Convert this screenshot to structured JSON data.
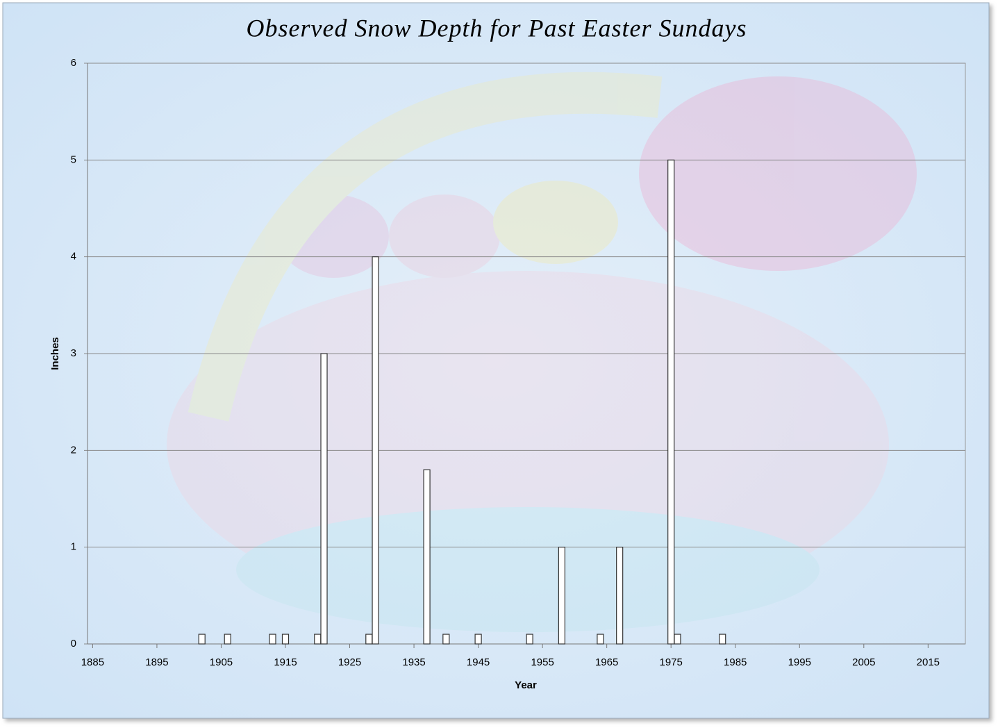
{
  "chart_data": {
    "type": "bar",
    "title": "Observed Snow Depth for Past Easter Sundays",
    "x_label": "Year",
    "y_label": "Inches",
    "x": [
      1902,
      1906,
      1913,
      1915,
      1920,
      1921,
      1928,
      1929,
      1937,
      1940,
      1945,
      1953,
      1958,
      1964,
      1967,
      1975,
      1976,
      1983
    ],
    "values": [
      0.1,
      0.1,
      0.1,
      0.1,
      0.1,
      3,
      0.1,
      4,
      1.8,
      0.1,
      0.1,
      0.1,
      1,
      0.1,
      1,
      5,
      0.1,
      0.1
    ],
    "color": "#ffffff",
    "xlim": [
      1884.2,
      2020.8
    ],
    "xticks": [
      1885,
      1895,
      1905,
      1915,
      1925,
      1935,
      1945,
      1955,
      1965,
      1975,
      1985,
      1995,
      2005,
      2015
    ],
    "ylim": [
      0,
      6
    ],
    "yticks": [
      0,
      1,
      2,
      3,
      4,
      5,
      6
    ],
    "grid": true
  }
}
